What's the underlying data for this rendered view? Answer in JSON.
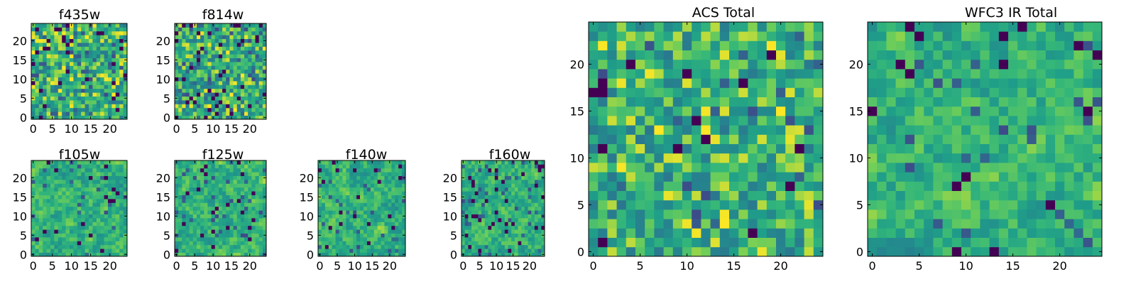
{
  "figure": {
    "colormap": "viridis",
    "background": "#ffffff"
  },
  "chart_data": [
    {
      "type": "heatmap",
      "title": "f435w",
      "size": 25,
      "seed": 11,
      "smooth": 0,
      "dark_fraction": 0.05,
      "xticks": [
        0,
        5,
        10,
        15,
        20
      ],
      "yticks": [
        0,
        5,
        10,
        15,
        20
      ],
      "xlim": [
        -0.5,
        24.5
      ],
      "ylim": [
        -0.5,
        24.5
      ]
    },
    {
      "type": "heatmap",
      "title": "f814w",
      "size": 25,
      "seed": 23,
      "smooth": 0,
      "dark_fraction": 0.06,
      "xticks": [
        0,
        5,
        10,
        15,
        20
      ],
      "yticks": [
        0,
        5,
        10,
        15,
        20
      ],
      "xlim": [
        -0.5,
        24.5
      ],
      "ylim": [
        -0.5,
        24.5
      ]
    },
    {
      "type": "heatmap",
      "title": "f105w",
      "size": 25,
      "seed": 37,
      "smooth": 1,
      "dark_fraction": 0.03,
      "xticks": [
        0,
        5,
        10,
        15,
        20
      ],
      "yticks": [
        0,
        5,
        10,
        15,
        20
      ],
      "xlim": [
        -0.5,
        24.5
      ],
      "ylim": [
        -0.5,
        24.5
      ]
    },
    {
      "type": "heatmap",
      "title": "f125w",
      "size": 25,
      "seed": 41,
      "smooth": 1,
      "dark_fraction": 0.04,
      "xticks": [
        0,
        5,
        10,
        15,
        20
      ],
      "yticks": [
        0,
        5,
        10,
        15,
        20
      ],
      "xlim": [
        -0.5,
        24.5
      ],
      "ylim": [
        -0.5,
        24.5
      ]
    },
    {
      "type": "heatmap",
      "title": "f140w",
      "size": 25,
      "seed": 53,
      "smooth": 1,
      "dark_fraction": 0.04,
      "xticks": [
        0,
        5,
        10,
        15,
        20
      ],
      "yticks": [
        0,
        5,
        10,
        15,
        20
      ],
      "xlim": [
        -0.5,
        24.5
      ],
      "ylim": [
        -0.5,
        24.5
      ]
    },
    {
      "type": "heatmap",
      "title": "f160w",
      "size": 25,
      "seed": 67,
      "smooth": 1,
      "dark_fraction": 0.04,
      "xticks": [
        0,
        5,
        10,
        15,
        20
      ],
      "yticks": [
        0,
        5,
        10,
        15,
        20
      ],
      "xlim": [
        -0.5,
        24.5
      ],
      "ylim": [
        -0.5,
        24.5
      ]
    },
    {
      "type": "heatmap",
      "title": "ACS Total",
      "size": 25,
      "seed": 79,
      "smooth": 0,
      "dark_fraction": 0.03,
      "xticks": [
        0,
        5,
        10,
        15,
        20
      ],
      "yticks": [
        0,
        5,
        10,
        15,
        20
      ],
      "xlim": [
        -0.5,
        24.5
      ],
      "ylim": [
        -0.5,
        24.5
      ]
    },
    {
      "type": "heatmap",
      "title": "WFC3 IR Total",
      "size": 25,
      "seed": 97,
      "smooth": 1,
      "dark_fraction": 0.03,
      "xticks": [
        0,
        5,
        10,
        15,
        20
      ],
      "yticks": [
        0,
        5,
        10,
        15,
        20
      ],
      "xlim": [
        -0.5,
        24.5
      ],
      "ylim": [
        -0.5,
        24.5
      ]
    }
  ]
}
